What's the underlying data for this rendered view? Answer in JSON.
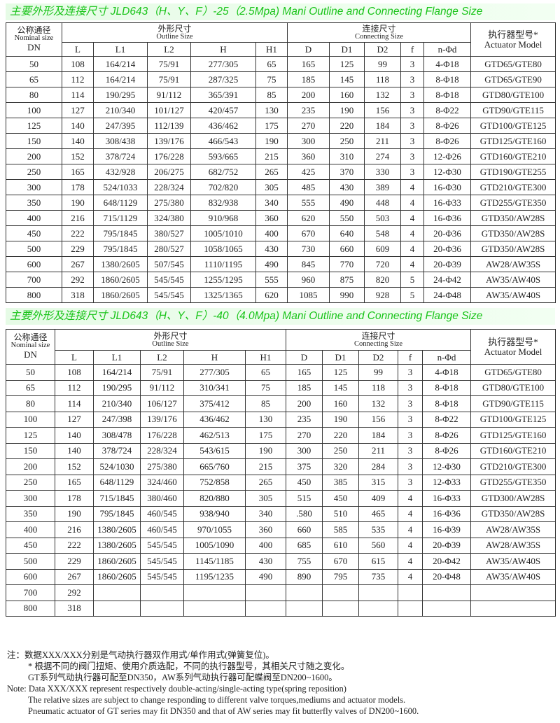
{
  "table1": {
    "title": "主要外形及连接尺寸 JLD643（H、Y、F）-25（2.5Mpa)   Mani Outline and Connecting Flange Size",
    "header": {
      "nominal_cn": "公称通径",
      "nominal_en": "Nominal size",
      "dn": "DN",
      "outline_cn": "外形尺寸",
      "outline_en": "Outline Size",
      "connecting_cn": "连接尺寸",
      "connecting_en": "Connecting Size",
      "actuator_cn": "执行器型号*",
      "actuator_en": "Actuator Model",
      "columns": [
        "L",
        "L1",
        "L2",
        "H",
        "H1",
        "D",
        "D1",
        "D2",
        "f",
        "n-Φd"
      ]
    },
    "rows": [
      [
        "50",
        "108",
        "164/214",
        "75/91",
        "277/305",
        "65",
        "165",
        "125",
        "99",
        "3",
        "4-Φ18",
        "GTD65/GTE80"
      ],
      [
        "65",
        "112",
        "164/214",
        "75/91",
        "287/325",
        "75",
        "185",
        "145",
        "118",
        "3",
        "8-Φ18",
        "GTD65/GTE90"
      ],
      [
        "80",
        "114",
        "190/295",
        "91/112",
        "365/391",
        "85",
        "200",
        "160",
        "132",
        "3",
        "8-Φ18",
        "GTD80/GTE100"
      ],
      [
        "100",
        "127",
        "210/340",
        "101/127",
        "420/457",
        "130",
        "235",
        "190",
        "156",
        "3",
        "8-Φ22",
        "GTD90/GTE115"
      ],
      [
        "125",
        "140",
        "247/395",
        "112/139",
        "436/462",
        "175",
        "270",
        "220",
        "184",
        "3",
        "8-Φ26",
        "GTD100/GTE125"
      ],
      [
        "150",
        "140",
        "308/438",
        "139/176",
        "466/543",
        "190",
        "300",
        "250",
        "211",
        "3",
        "8-Φ26",
        "GTD125/GTE160"
      ],
      [
        "200",
        "152",
        "378/724",
        "176/228",
        "593/665",
        "215",
        "360",
        "310",
        "274",
        "3",
        "12-Φ26",
        "GTD160/GTE210"
      ],
      [
        "250",
        "165",
        "432/928",
        "206/275",
        "682/752",
        "265",
        "425",
        "370",
        "330",
        "3",
        "12-Φ30",
        "GTD190/GTE255"
      ],
      [
        "300",
        "178",
        "524/1033",
        "228/324",
        "702/820",
        "305",
        "485",
        "430",
        "389",
        "4",
        "16-Φ30",
        "GTD210/GTE300"
      ],
      [
        "350",
        "190",
        "648/1129",
        "275/380",
        "832/938",
        "340",
        "555",
        "490",
        "448",
        "4",
        "16-Φ33",
        "GTD255/GTE350"
      ],
      [
        "400",
        "216",
        "715/1129",
        "324/380",
        "910/968",
        "360",
        "620",
        "550",
        "503",
        "4",
        "16-Φ36",
        "GTD350/AW28S"
      ],
      [
        "450",
        "222",
        "795/1845",
        "380/527",
        "1005/1010",
        "400",
        "670",
        "640",
        "548",
        "4",
        "20-Φ36",
        "GTD350/AW28S"
      ],
      [
        "500",
        "229",
        "795/1845",
        "280/527",
        "1058/1065",
        "430",
        "730",
        "660",
        "609",
        "4",
        "20-Φ36",
        "GTD350/AW28S"
      ],
      [
        "600",
        "267",
        "1380/2605",
        "507/545",
        "1110/1195",
        "490",
        "845",
        "770",
        "720",
        "4",
        "20-Φ39",
        "AW28/AW35S"
      ],
      [
        "700",
        "292",
        "1860/2605",
        "545/545",
        "1255/1295",
        "555",
        "960",
        "875",
        "820",
        "5",
        "24-Φ42",
        "AW35/AW40S"
      ],
      [
        "800",
        "318",
        "1860/2605",
        "545/545",
        "1325/1365",
        "620",
        "1085",
        "990",
        "928",
        "5",
        "24-Φ48",
        "AW35/AW40S"
      ]
    ]
  },
  "table2": {
    "title": "主要外形及连接尺寸 JLD643（H、Y、F）-40（4.0Mpa)   Mani Outline and Connecting Flange Size",
    "header": {
      "nominal_cn": "公称通径",
      "nominal_en": "Nominal size",
      "dn": "DN",
      "outline_cn": "外形尺寸",
      "outline_en": "Outline Size",
      "connecting_cn": "连接尺寸",
      "connecting_en": "Connecting Size",
      "actuator_cn": "执行器型号*",
      "actuator_en": "Actuator Model",
      "columns": [
        "L",
        "L1",
        "L2",
        "H",
        "H1",
        "D",
        "D1",
        "D2",
        "f",
        "n-Φd"
      ]
    },
    "rows": [
      [
        "50",
        "108",
        "164/214",
        "75/91",
        "277/305",
        "65",
        "165",
        "125",
        "99",
        "3",
        "4-Φ18",
        "GTD65/GTE80"
      ],
      [
        "65",
        "112",
        "190/295",
        "91/112",
        "310/341",
        "75",
        "185",
        "145",
        "118",
        "3",
        "8-Φ18",
        "GTD80/GTE100"
      ],
      [
        "80",
        "114",
        "210/340",
        "106/127",
        "375/412",
        "85",
        "200",
        "160",
        "132",
        "3",
        "8-Φ18",
        "GTD90/GTE115"
      ],
      [
        "100",
        "127",
        "247/398",
        "139/176",
        "436/462",
        "130",
        "235",
        "190",
        "156",
        "3",
        "8-Φ22",
        "GTD100/GTE125"
      ],
      [
        "125",
        "140",
        "308/478",
        "176/228",
        "462/513",
        "175",
        "270",
        "220",
        "184",
        "3",
        "8-Φ26",
        "GTD125/GTE160"
      ],
      [
        "150",
        "140",
        "378/724",
        "228/324",
        "543/615",
        "190",
        "300",
        "250",
        "211",
        "3",
        "8-Φ26",
        "GTD160/GTE210"
      ],
      [
        "200",
        "152",
        "524/1030",
        "275/380",
        "665/760",
        "215",
        "375",
        "320",
        "284",
        "3",
        "12-Φ30",
        "GTD210/GTE300"
      ],
      [
        "250",
        "165",
        "648/1129",
        "324/460",
        "752/858",
        "265",
        "450",
        "385",
        "315",
        "3",
        "12-Φ33",
        "GTD255/GTE350"
      ],
      [
        "300",
        "178",
        "715/1845",
        "380/460",
        "820/880",
        "305",
        "515",
        "450",
        "409",
        "4",
        "16-Φ33",
        "GTD300/AW28S"
      ],
      [
        "350",
        "190",
        "795/1845",
        "460/545",
        "938/940",
        "340",
        ".580",
        "510",
        "465",
        "4",
        "16-Φ36",
        "GTD350/AW28S"
      ],
      [
        "400",
        "216",
        "1380/2605",
        "460/545",
        "970/1055",
        "360",
        "660",
        "585",
        "535",
        "4",
        "16-Φ39",
        "AW28/AW35S"
      ],
      [
        "450",
        "222",
        "1380/2605",
        "545/545",
        "1005/1090",
        "400",
        "685",
        "610",
        "560",
        "4",
        "20-Φ39",
        "AW28/AW35S"
      ],
      [
        "500",
        "229",
        "1860/2605",
        "545/545",
        "1145/1185",
        "430",
        "755",
        "670",
        "615",
        "4",
        "20-Φ42",
        "AW35/AW40S"
      ],
      [
        "600",
        "267",
        "1860/2605",
        "545/545",
        "1195/1235",
        "490",
        "890",
        "795",
        "735",
        "4",
        "20-Φ48",
        "AW35/AW40S"
      ],
      [
        "700",
        "292",
        "",
        "",
        "",
        "",
        "",
        "",
        "",
        "",
        "",
        ""
      ],
      [
        "800",
        "318",
        "",
        "",
        "",
        "",
        "",
        "",
        "",
        "",
        "",
        ""
      ]
    ]
  },
  "notes": [
    "注：数据XXX/XXX分别是气动执行器双作用式/单作用式(弹簧复位)。",
    "* 根据不同的阀门扭矩、使用介质选配，不同的执行器型号，其相关尺寸随之变化。",
    "GT系列气动执行器可配至DN350，AW系列气动执行器可配蝶阀至DN200~1600。",
    "Note: Data XXX/XXX represent respectively double-acting/single-acting type(spring reposition)",
    "The relative sizes are subject to change responding to different valve torques,mediums and actuator models.",
    "Pneumatic actuator of GT series may fit DN350 and that of AW series may fit butterfly valves of DN200~1600."
  ],
  "colors": {
    "title_text": "#19c419",
    "title_band": "#e6fbe6"
  }
}
